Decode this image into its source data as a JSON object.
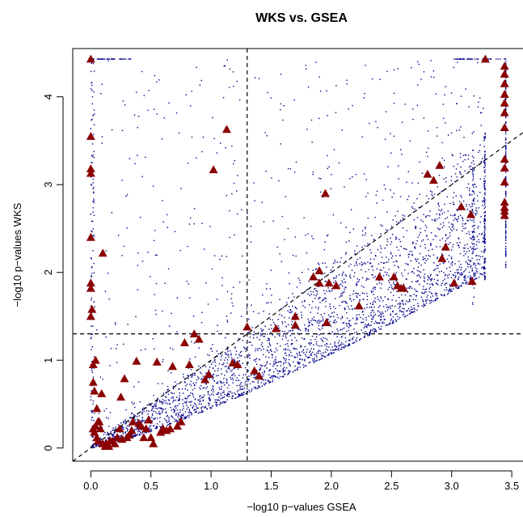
{
  "chart_data": {
    "type": "scatter",
    "title": "WKS vs. GSEA",
    "xlabel": "−log10 p−values GSEA",
    "ylabel": "−log10 p−values WKS",
    "xlim": [
      -0.15,
      3.6
    ],
    "ylim": [
      -0.15,
      4.55
    ],
    "x_ticks": [
      0.0,
      0.5,
      1.0,
      1.5,
      2.0,
      2.5,
      3.0,
      3.5
    ],
    "x_tick_labels": [
      "0.0",
      "0.5",
      "1.0",
      "1.5",
      "2.0",
      "2.5",
      "3.0",
      "3.5"
    ],
    "y_ticks": [
      0,
      1,
      2,
      3,
      4
    ],
    "y_tick_labels": [
      "0",
      "1",
      "2",
      "3",
      "4"
    ],
    "reference_lines": {
      "vertical_x": 1.3,
      "horizontal_y": 1.3,
      "diagonal": {
        "slope": 1,
        "intercept": 0
      }
    },
    "grid": false,
    "colors": {
      "background_points": "#00008b",
      "highlight_points": "#8b0000",
      "lines": "#000000"
    },
    "series": [
      {
        "marker": "dot",
        "color": "#00008b",
        "generated_pattern": {
          "lower_band_count": 2600,
          "upper_scatter_count": 650,
          "max_x": 3.45,
          "max_y": 4.43,
          "seed": 12345
        }
      },
      {
        "marker": "triangle",
        "color": "#8b0000",
        "x": [
          0.0,
          0.0,
          0.0,
          0.0,
          0.0,
          0.0,
          0.0,
          0.0,
          0.01,
          0.02,
          0.02,
          0.03,
          0.04,
          0.05,
          0.06,
          0.09,
          0.1,
          0.02,
          0.03,
          0.04,
          0.05,
          0.06,
          0.07,
          0.08,
          0.1,
          0.12,
          0.13,
          0.15,
          0.16,
          0.18,
          0.2,
          0.22,
          0.24,
          0.25,
          0.26,
          0.28,
          0.3,
          0.32,
          0.34,
          0.35,
          0.38,
          0.4,
          0.42,
          0.44,
          0.46,
          0.48,
          0.5,
          0.52,
          0.55,
          0.58,
          0.6,
          0.63,
          0.66,
          0.68,
          0.72,
          0.75,
          0.78,
          0.82,
          0.86,
          0.9,
          0.95,
          0.98,
          1.02,
          1.13,
          1.18,
          1.22,
          1.3,
          1.36,
          1.4,
          1.54,
          1.7,
          1.7,
          1.85,
          1.9,
          1.9,
          1.95,
          1.96,
          1.98,
          2.04,
          2.23,
          2.4,
          2.52,
          2.55,
          2.58,
          2.6,
          2.8,
          2.85,
          2.9,
          2.92,
          2.95,
          3.02,
          3.08,
          3.16,
          3.17,
          3.28,
          3.44,
          3.44,
          3.44,
          3.44,
          3.44,
          3.44,
          3.44,
          3.44,
          3.44,
          3.44,
          3.44,
          3.44,
          3.44,
          3.44
        ],
        "y": [
          4.43,
          3.55,
          3.18,
          3.13,
          2.4,
          1.88,
          1.82,
          1.5,
          1.58,
          0.95,
          0.75,
          0.65,
          1.0,
          0.45,
          0.3,
          0.62,
          2.22,
          0.22,
          0.18,
          0.25,
          0.12,
          0.08,
          0.3,
          0.22,
          0.05,
          0.02,
          0.05,
          0.02,
          0.08,
          0.08,
          0.05,
          0.12,
          0.22,
          0.58,
          0.1,
          0.79,
          0.12,
          0.15,
          0.2,
          0.3,
          0.99,
          0.28,
          0.25,
          0.12,
          0.22,
          0.32,
          0.12,
          0.05,
          0.98,
          0.18,
          0.22,
          0.2,
          0.22,
          0.93,
          0.25,
          0.3,
          1.2,
          0.95,
          1.3,
          1.24,
          0.78,
          0.84,
          3.17,
          3.63,
          0.97,
          0.95,
          1.38,
          0.88,
          0.82,
          1.36,
          1.4,
          1.5,
          1.95,
          2.02,
          1.88,
          2.9,
          1.43,
          1.88,
          1.85,
          1.62,
          1.95,
          1.95,
          1.85,
          1.82,
          1.82,
          3.12,
          3.05,
          3.22,
          2.16,
          2.29,
          1.88,
          2.75,
          2.66,
          1.9,
          4.43,
          4.35,
          4.26,
          4.15,
          4.03,
          3.93,
          3.82,
          3.29,
          3.19,
          3.03,
          2.8,
          2.74,
          2.65,
          3.65,
          2.7
        ]
      }
    ]
  }
}
